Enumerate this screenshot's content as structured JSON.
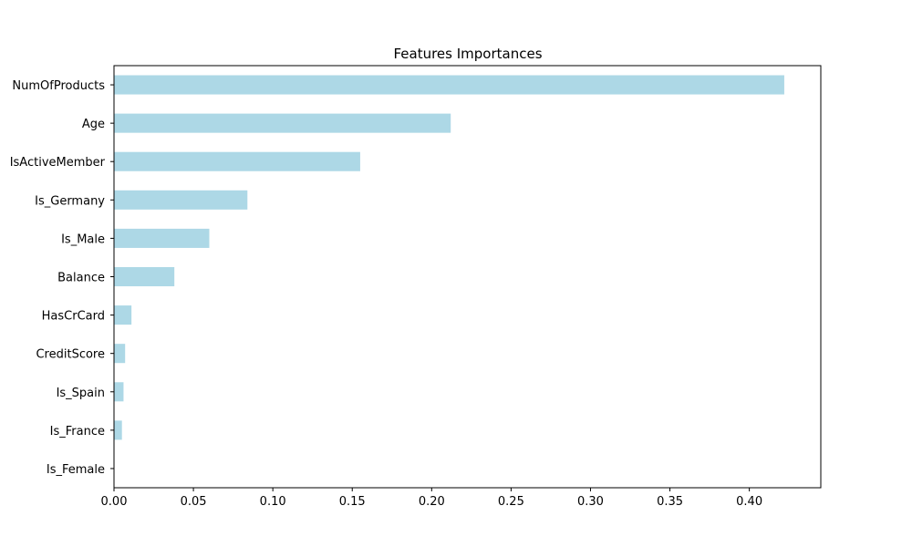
{
  "chart_data": {
    "type": "bar",
    "orientation": "horizontal",
    "title": "Features Importances",
    "xlabel": "",
    "ylabel": "",
    "categories": [
      "NumOfProducts",
      "Age",
      "IsActiveMember",
      "Is_Germany",
      "Is_Male",
      "Balance",
      "HasCrCard",
      "CreditScore",
      "Is_Spain",
      "Is_France",
      "Is_Female"
    ],
    "values": [
      0.422,
      0.212,
      0.155,
      0.084,
      0.06,
      0.038,
      0.011,
      0.007,
      0.006,
      0.005,
      0.0
    ],
    "xlim": [
      0.0,
      0.445
    ],
    "xticks": [
      "0.00",
      "0.05",
      "0.10",
      "0.15",
      "0.20",
      "0.25",
      "0.30",
      "0.35",
      "0.40"
    ],
    "grid": false,
    "legend": "none",
    "bar_color": "#add8e6"
  }
}
